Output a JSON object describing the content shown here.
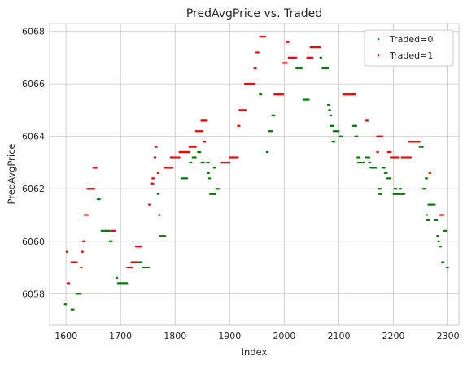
{
  "chart_data": {
    "type": "scatter",
    "title": "PredAvgPrice vs. Traded",
    "xlabel": "Index",
    "ylabel": "PredAvgPrice",
    "xlim": [
      1570,
      2320
    ],
    "ylim": [
      6056.8,
      6068.3
    ],
    "xticks": [
      1600,
      1700,
      1800,
      1900,
      2000,
      2100,
      2200,
      2300
    ],
    "yticks": [
      6058,
      6060,
      6062,
      6064,
      6066,
      6068
    ],
    "grid": true,
    "legend_position": "top-right",
    "series": [
      {
        "name": "Traded=0",
        "color": "#008000",
        "segments": [
          [
            1598,
            1600,
            6057.6
          ],
          [
            1610,
            1614,
            6057.4
          ],
          [
            1619,
            1627,
            6058.0
          ],
          [
            1658,
            1662,
            6061.6
          ],
          [
            1665,
            1680,
            6060.4
          ],
          [
            1680,
            1684,
            6060.0
          ],
          [
            1692,
            1694,
            6058.6
          ],
          [
            1695,
            1712,
            6058.4
          ],
          [
            1730,
            1738,
            6059.2
          ],
          [
            1740,
            1752,
            6059.0
          ],
          [
            1768,
            1770,
            6061.8
          ],
          [
            1770,
            1772,
            6061.0
          ],
          [
            1772,
            1782,
            6060.2
          ],
          [
            1812,
            1822,
            6062.4
          ],
          [
            1827,
            1830,
            6063.0
          ],
          [
            1832,
            1838,
            6063.2
          ],
          [
            1842,
            1846,
            6063.4
          ],
          [
            1848,
            1853,
            6063.0
          ],
          [
            1858,
            1862,
            6063.0
          ],
          [
            1860,
            1862,
            6062.6
          ],
          [
            1862,
            1864,
            6062.4
          ],
          [
            1864,
            1868,
            6061.8
          ],
          [
            1868,
            1874,
            6061.8
          ],
          [
            1871,
            1873,
            6062.8
          ],
          [
            1875,
            1880,
            6062.0
          ],
          [
            1955,
            1958,
            6065.6
          ],
          [
            1968,
            1970,
            6063.4
          ],
          [
            1972,
            1978,
            6064.2
          ],
          [
            1978,
            1982,
            6064.8
          ],
          [
            2022,
            2032,
            6066.6
          ],
          [
            2035,
            2045,
            6065.4
          ],
          [
            2066,
            2068,
            6067.0
          ],
          [
            2070,
            2080,
            6066.6
          ],
          [
            2080,
            2082,
            6065.2
          ],
          [
            2082,
            2084,
            6065.0
          ],
          [
            2084,
            2086,
            6064.8
          ],
          [
            2085,
            2090,
            6064.4
          ],
          [
            2088,
            2092,
            6063.8
          ],
          [
            2090,
            2100,
            6064.2
          ],
          [
            2102,
            2106,
            6064.0
          ],
          [
            2126,
            2132,
            6064.4
          ],
          [
            2130,
            2134,
            6064.0
          ],
          [
            2134,
            2138,
            6063.2
          ],
          [
            2135,
            2140,
            6063.0
          ],
          [
            2142,
            2147,
            6063.0
          ],
          [
            2150,
            2156,
            6063.2
          ],
          [
            2155,
            2158,
            6063.0
          ],
          [
            2158,
            2168,
            6062.8
          ],
          [
            2172,
            2177,
            6062.0
          ],
          [
            2174,
            2178,
            6061.8
          ],
          [
            2180,
            2184,
            6062.8
          ],
          [
            2184,
            2188,
            6062.6
          ],
          [
            2188,
            2195,
            6062.4
          ],
          [
            2200,
            2206,
            6061.8
          ],
          [
            2202,
            2206,
            6062.0
          ],
          [
            2206,
            2212,
            6061.8
          ],
          [
            2212,
            2214,
            6062.0
          ],
          [
            2214,
            2220,
            6061.8
          ],
          [
            2248,
            2254,
            6063.6
          ],
          [
            2254,
            2259,
            6062.0
          ],
          [
            2259,
            2262,
            6062.4
          ],
          [
            2260,
            2262,
            6061.0
          ],
          [
            2262,
            2265,
            6060.8
          ],
          [
            2264,
            2276,
            6061.4
          ],
          [
            2276,
            2280,
            6060.8
          ],
          [
            2280,
            2282,
            6060.2
          ],
          [
            2282,
            2284,
            6060.0
          ],
          [
            2285,
            2287,
            6059.8
          ],
          [
            2289,
            2292,
            6059.2
          ],
          [
            2293,
            2298,
            6060.4
          ],
          [
            2297,
            2300,
            6059.0
          ]
        ]
      },
      {
        "name": "Traded=1",
        "color": "#ff0000",
        "segments": [
          [
            1601,
            1603,
            6059.6
          ],
          [
            1603,
            1606,
            6058.4
          ],
          [
            1610,
            1620,
            6059.2
          ],
          [
            1625,
            1627,
            6058.0
          ],
          [
            1627,
            1629,
            6059.0
          ],
          [
            1629,
            1631,
            6059.6
          ],
          [
            1631,
            1634,
            6060.0
          ],
          [
            1634,
            1640,
            6061.0
          ],
          [
            1639,
            1652,
            6062.0
          ],
          [
            1650,
            1656,
            6062.8
          ],
          [
            1683,
            1690,
            6060.4
          ],
          [
            1712,
            1722,
            6059.0
          ],
          [
            1720,
            1730,
            6059.2
          ],
          [
            1728,
            1738,
            6059.8
          ],
          [
            1752,
            1754,
            6061.4
          ],
          [
            1756,
            1760,
            6062.2
          ],
          [
            1758,
            1762,
            6062.4
          ],
          [
            1762,
            1764,
            6063.2
          ],
          [
            1764,
            1766,
            6063.6
          ],
          [
            1768,
            1770,
            6062.6
          ],
          [
            1780,
            1795,
            6062.8
          ],
          [
            1792,
            1808,
            6063.2
          ],
          [
            1808,
            1820,
            6063.4
          ],
          [
            1818,
            1826,
            6063.4
          ],
          [
            1826,
            1838,
            6063.6
          ],
          [
            1838,
            1850,
            6064.2
          ],
          [
            1848,
            1858,
            6064.6
          ],
          [
            1852,
            1855,
            6063.8
          ],
          [
            1885,
            1900,
            6063.0
          ],
          [
            1900,
            1915,
            6063.2
          ],
          [
            1915,
            1918,
            6064.4
          ],
          [
            1918,
            1930,
            6065.0
          ],
          [
            1928,
            1946,
            6066.0
          ],
          [
            1945,
            1948,
            6066.6
          ],
          [
            1948,
            1953,
            6067.2
          ],
          [
            1955,
            1965,
            6067.8
          ],
          [
            1982,
            1998,
            6065.6
          ],
          [
            1998,
            2005,
            6066.8
          ],
          [
            2004,
            2008,
            6067.6
          ],
          [
            2008,
            2022,
            6067.0
          ],
          [
            2042,
            2052,
            6067.0
          ],
          [
            2048,
            2066,
            6067.4
          ],
          [
            2108,
            2130,
            6065.6
          ],
          [
            2150,
            2153,
            6064.6
          ],
          [
            2170,
            2172,
            6064.0
          ],
          [
            2172,
            2180,
            6064.0
          ],
          [
            2170,
            2172,
            6063.4
          ],
          [
            2190,
            2195,
            6063.4
          ],
          [
            2195,
            2210,
            6063.2
          ],
          [
            2215,
            2222,
            6063.2
          ],
          [
            2222,
            2232,
            6063.2
          ],
          [
            2228,
            2248,
            6063.8
          ],
          [
            2266,
            2268,
            6062.6
          ],
          [
            2285,
            2292,
            6061.0
          ]
        ]
      }
    ]
  }
}
